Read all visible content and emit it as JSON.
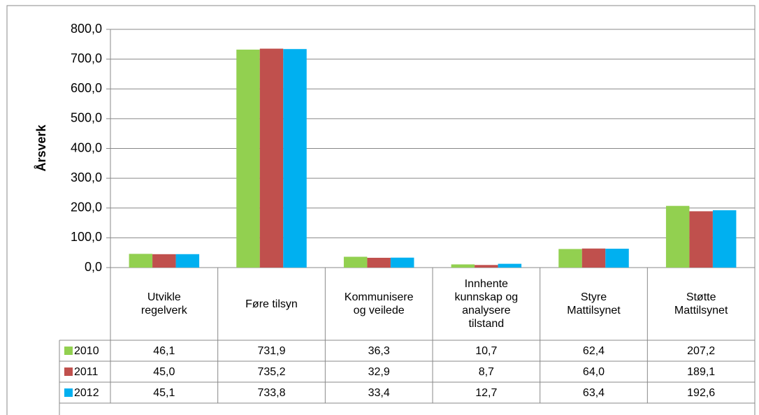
{
  "chart_data": {
    "type": "bar",
    "y_label": "Årsverk",
    "categories": [
      "Utvikle\nregelverk",
      "Føre tilsyn",
      "Kommunisere\nog veilede",
      "Innhente\nkunnskap og\nanalysere\ntilstand",
      "Styre\nMattilsynet",
      "Støtte\nMattilsynet"
    ],
    "series": [
      {
        "name": "2010",
        "color": "#92d050",
        "values": [
          46.1,
          731.9,
          36.3,
          10.7,
          62.4,
          207.2
        ],
        "value_labels": [
          "46,1",
          "731,9",
          "36,3",
          "10,7",
          "62,4",
          "207,2"
        ]
      },
      {
        "name": "2011",
        "color": "#c0504d",
        "values": [
          45.0,
          735.2,
          32.9,
          8.7,
          64.0,
          189.1
        ],
        "value_labels": [
          "45,0",
          "735,2",
          "32,9",
          "8,7",
          "64,0",
          "189,1"
        ]
      },
      {
        "name": "2012",
        "color": "#00b0f0",
        "values": [
          45.1,
          733.8,
          33.4,
          12.7,
          63.4,
          192.6
        ],
        "value_labels": [
          "45,1",
          "733,8",
          "33,4",
          "12,7",
          "63,4",
          "192,6"
        ]
      }
    ],
    "ylim": [
      0,
      800
    ],
    "yticks": [
      {
        "value": 0,
        "label": "0,0"
      },
      {
        "value": 100,
        "label": "100,0"
      },
      {
        "value": 200,
        "label": "200,0"
      },
      {
        "value": 300,
        "label": "300,0"
      },
      {
        "value": 400,
        "label": "400,0"
      },
      {
        "value": 500,
        "label": "500,0"
      },
      {
        "value": 600,
        "label": "600,0"
      },
      {
        "value": 700,
        "label": "700,0"
      },
      {
        "value": 800,
        "label": "800,0"
      }
    ],
    "grid": true
  }
}
